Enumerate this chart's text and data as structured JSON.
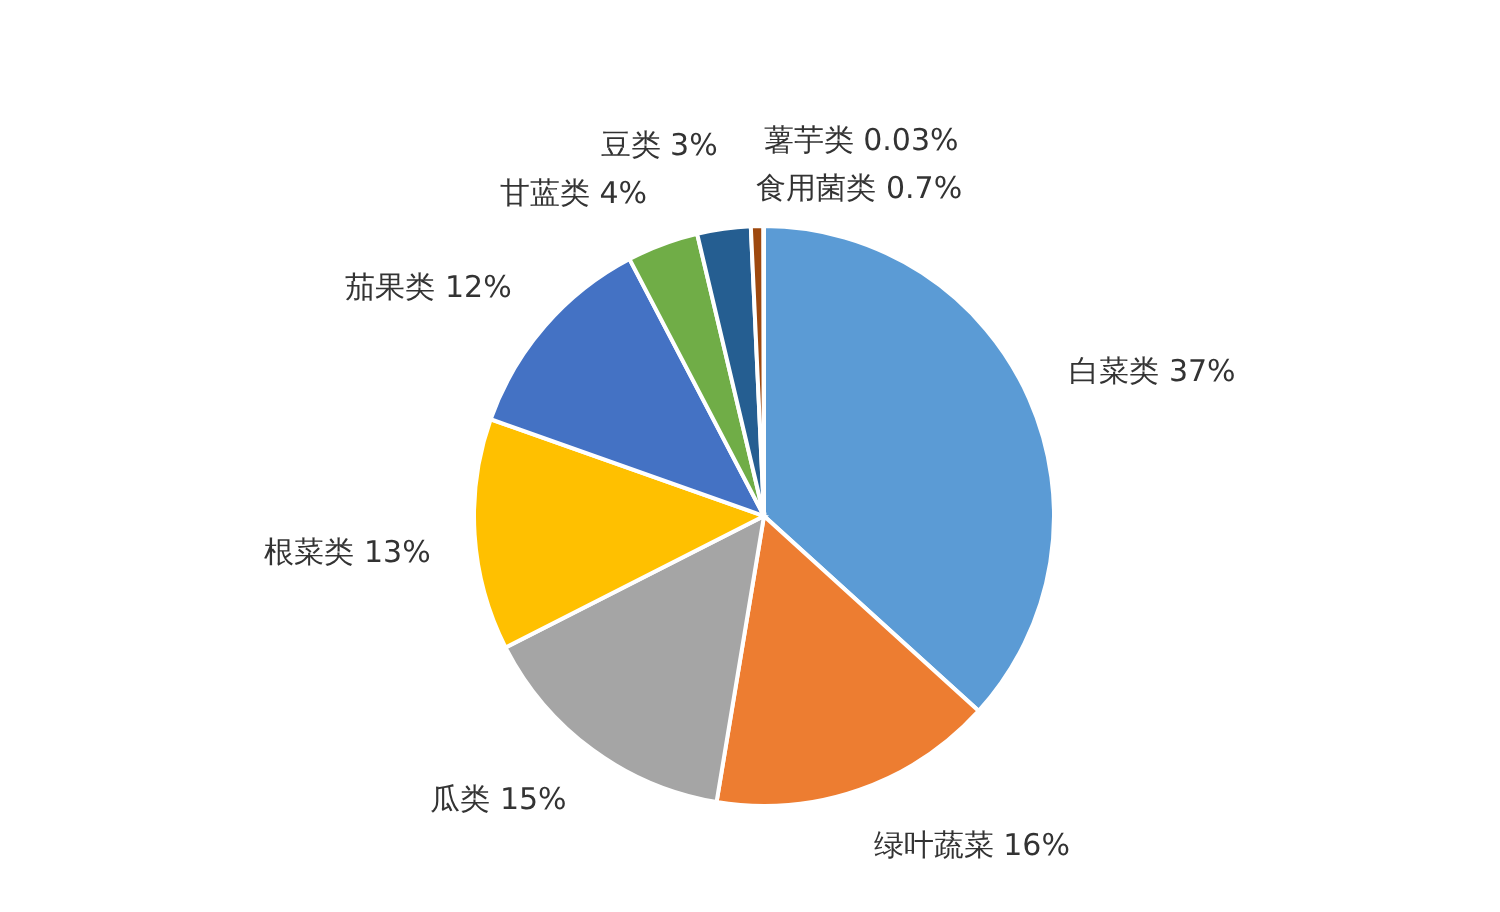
{
  "chart_data": {
    "type": "pie",
    "categories": [
      "白菜类",
      "绿叶蔬菜",
      "瓜类",
      "根菜类",
      "茄果类",
      "甘蓝类",
      "豆类",
      "食用菌类",
      "薯芋类"
    ],
    "values": [
      37,
      16,
      15,
      13,
      12,
      4,
      3,
      0.7,
      0.03
    ],
    "value_labels": [
      "37%",
      "16%",
      "15%",
      "13%",
      "12%",
      "4%",
      "3%",
      "0.7%",
      "0.03%"
    ],
    "colors": [
      "#5b9bd5",
      "#ed7d31",
      "#a5a5a5",
      "#ffc000",
      "#4472c4",
      "#70ad47",
      "#255e91",
      "#9e480e",
      "#636363"
    ]
  }
}
